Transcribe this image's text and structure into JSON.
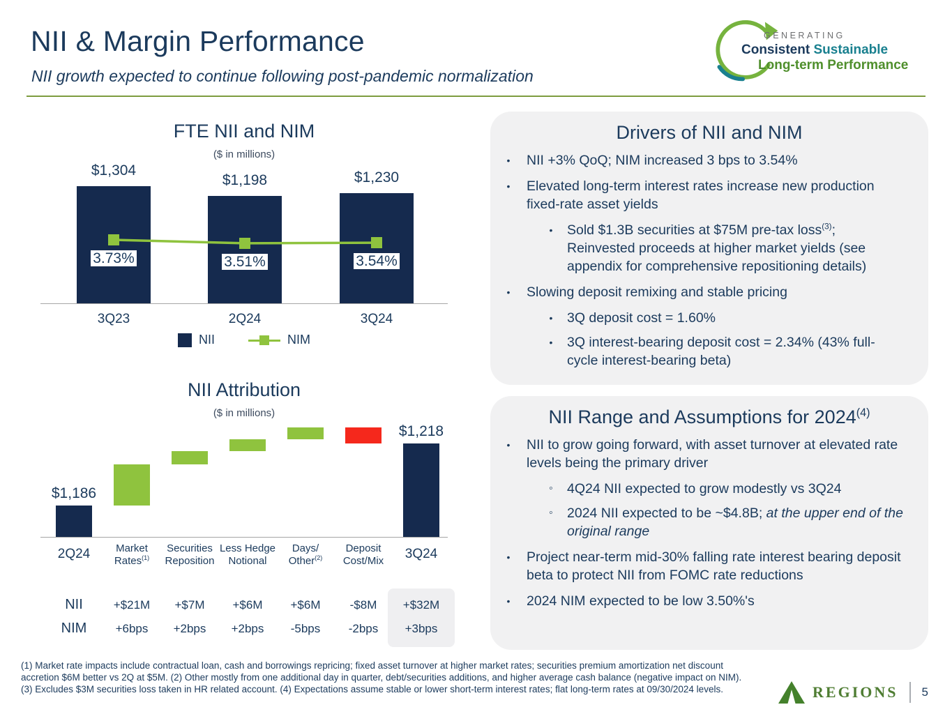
{
  "header": {
    "title": "NII & Margin Performance",
    "subtitle": "NII growth expected to continue following post-pandemic normalization",
    "logo": {
      "generating": "GENERATING",
      "consistent": "Consistent",
      "sustainable": "Sustainable",
      "longterm": "Long-term Performance"
    }
  },
  "chart_data": [
    {
      "type": "bar",
      "title": "FTE NII and NIM",
      "subtitle": "($ in millions)",
      "categories": [
        "3Q23",
        "2Q24",
        "3Q24"
      ],
      "series": [
        {
          "name": "NII",
          "kind": "bar",
          "values": [
            1304,
            1198,
            1230
          ],
          "labels": [
            "$1,304",
            "$1,198",
            "$1,230"
          ],
          "color": "#152a4e"
        },
        {
          "name": "NIM",
          "kind": "line",
          "values": [
            3.73,
            3.51,
            3.54
          ],
          "labels": [
            "3.73%",
            "3.51%",
            "3.54%"
          ],
          "color": "#8fc33e"
        }
      ],
      "ylim": [
        0,
        1400
      ],
      "legend_position": "bottom"
    },
    {
      "type": "waterfall",
      "title": "NII Attribution",
      "subtitle": "($ in millions)",
      "ylim": [
        1170,
        1240
      ],
      "colors": {
        "total": "#152a4e",
        "up": "#8fc33e",
        "down": "#f5281c"
      },
      "columns": [
        {
          "kind": "total",
          "value": 1186,
          "bar_label": "$1,186",
          "label_lines": [
            "2Q24"
          ]
        },
        {
          "kind": "delta",
          "value": 21,
          "label_lines": [
            "Market",
            "Rates^(1)"
          ]
        },
        {
          "kind": "delta",
          "value": 7,
          "label_lines": [
            "Securities",
            "Reposition"
          ]
        },
        {
          "kind": "delta",
          "value": 6,
          "label_lines": [
            "Less Hedge",
            "Notional"
          ]
        },
        {
          "kind": "delta",
          "value": 6,
          "label_lines": [
            "Days/",
            "Other^(2)"
          ]
        },
        {
          "kind": "delta",
          "value": -8,
          "label_lines": [
            "Deposit",
            "Cost/Mix"
          ]
        },
        {
          "kind": "total",
          "value": 1218,
          "bar_label": "$1,218",
          "label_lines": [
            "3Q24"
          ]
        }
      ],
      "table": {
        "row_labels": [
          "NII",
          "NIM"
        ],
        "rows": [
          [
            "+$21M",
            "+$7M",
            "+$6M",
            "+$6M",
            "-$8M",
            "+$32M"
          ],
          [
            "+6bps",
            "+2bps",
            "+2bps",
            "-5bps",
            "-2bps",
            "+3bps"
          ]
        ],
        "highlight_last_column": true
      }
    }
  ],
  "drivers": {
    "title": "Drivers of NII and NIM",
    "b1": "NII +3% QoQ; NIM increased 3 bps to 3.54%",
    "b2": "Elevated long-term interest rates increase new production fixed-rate asset yields",
    "b2_sub_pre": "Sold $1.3B securities at $75M pre-tax loss",
    "b2_sub_sup": "(3)",
    "b2_sub_post": "; Reinvested proceeds at higher market yields (see appendix for comprehensive repositioning details)",
    "b3": "Slowing deposit remixing and stable pricing",
    "b3_sub1": "3Q deposit cost = 1.60%",
    "b3_sub2": "3Q interest-bearing deposit cost = 2.34% (43% full-cycle interest-bearing beta)"
  },
  "assumptions": {
    "title_pre": "NII Range and Assumptions for 2024",
    "title_sup": "(4)",
    "b1": "NII to grow going forward, with asset turnover at elevated rate levels being the primary driver",
    "b1_sub1": "4Q24 NII expected to grow modestly vs 3Q24",
    "b1_sub2_pre": "2024 NII expected to be ~$4.8B; ",
    "b1_sub2_italic": "at the upper end of the original range",
    "b2": "Project near-term mid-30% falling rate interest bearing deposit beta to protect NII from FOMC rate reductions",
    "b3": "2024 NIM expected to be low 3.50%'s"
  },
  "footer": {
    "footnote_line1": "(1) Market rate impacts include contractual loan, cash and borrowings repricing; fixed asset turnover at higher market rates; securities premium amortization net discount",
    "footnote_line2": "accretion $6M better vs 2Q at $5M.  (2) Other mostly from one additional day in quarter,  debt/securities additions, and higher average cash balance (negative impact on NIM).",
    "footnote_line3": "(3) Excludes $3M securities loss taken in HR related account. (4) Expectations assume stable or lower short-term interest rates; flat long-term rates at  09/30/2024 levels.",
    "brand_name": "REGIONS",
    "page_number": "5"
  },
  "colors": {
    "navy_text": "#1b3a5c",
    "bar_navy": "#152a4e",
    "positive_green": "#8fc33e",
    "negative_red": "#f5281c",
    "divider_green": "#7d9c3e",
    "panel_bg": "#f1f1f2",
    "logo_teal": "#19808f",
    "logo_green": "#76b33e",
    "brand_green": "#4f7d33"
  }
}
